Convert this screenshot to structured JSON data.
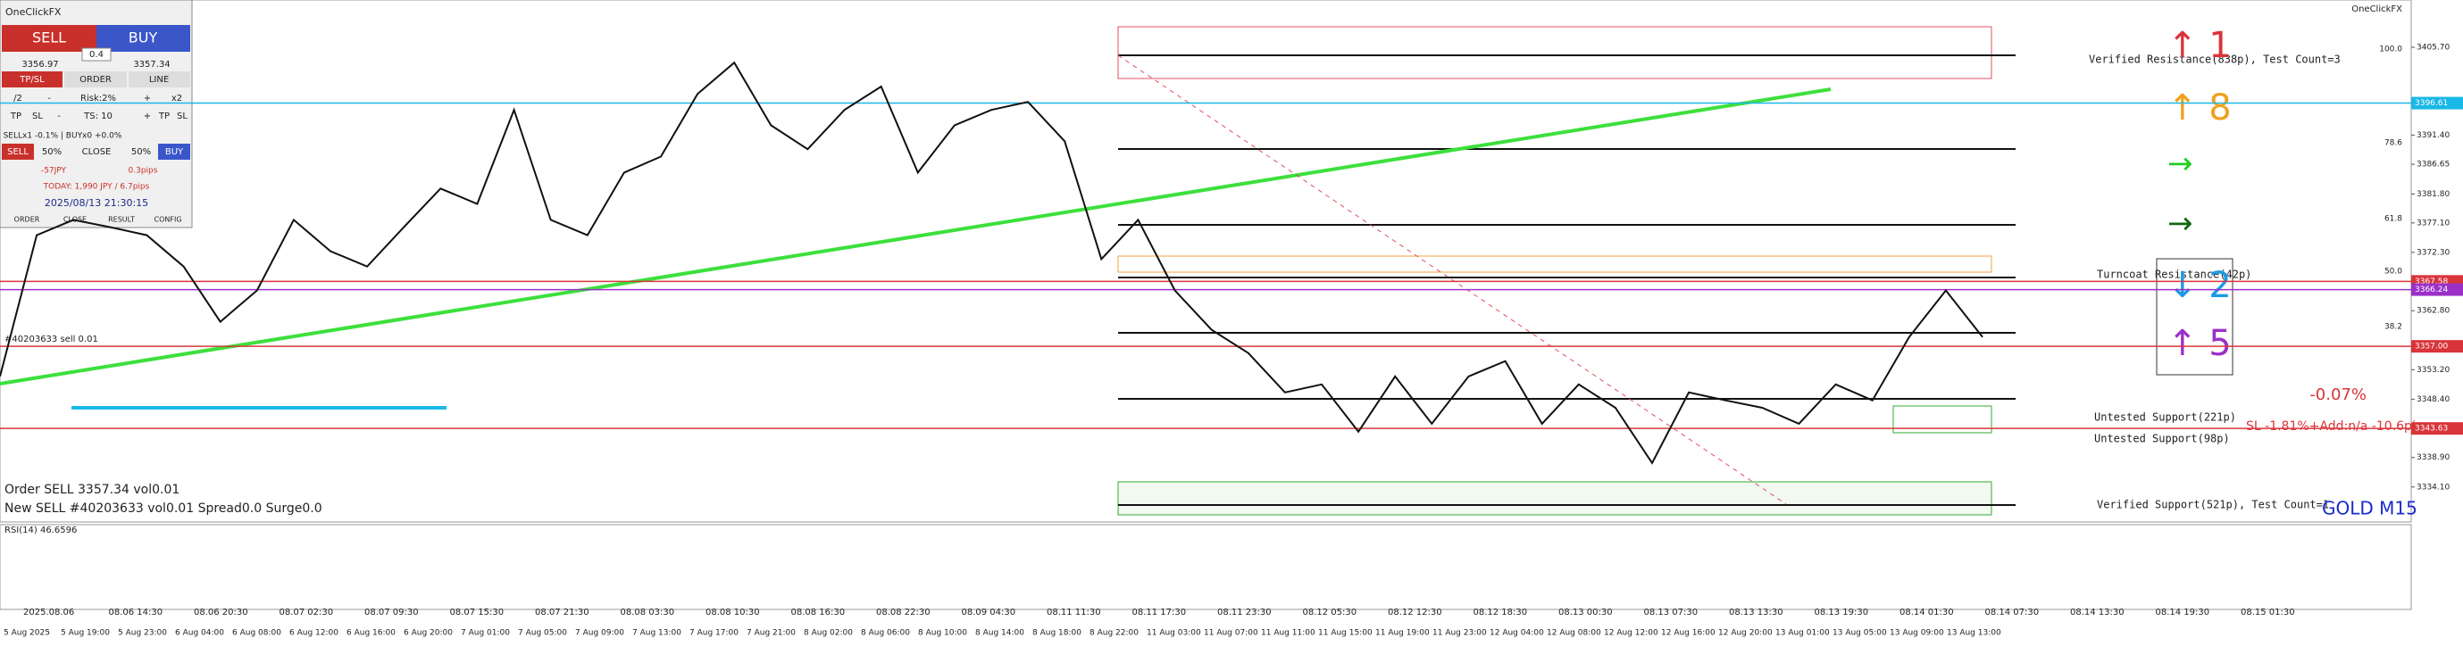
{
  "panel": {
    "title": "OneClickFX",
    "sell": "SELL",
    "buy": "BUY",
    "lot": "0.4",
    "bid": "3356.97",
    "ask": "3357.34",
    "tabs": [
      "TP/SL",
      "ORDER",
      "LINE"
    ],
    "row1": [
      "/2",
      "-",
      "Risk:2%",
      "+",
      "x2"
    ],
    "row2": [
      "TP",
      "SL",
      "-",
      "TS: 10",
      "+",
      "TP",
      "SL"
    ],
    "status": "SELLx1 -0.1% | BUYx0 +0.0%",
    "row3": [
      "SELL",
      "50%",
      "CLOSE",
      "50%",
      "BUY"
    ],
    "pl": "-57JPY",
    "pips": "0.3pips",
    "today": "TODAY: 1,990 JPY / 6.7pips",
    "clock": "2025/08/13 21:30:15",
    "footer": [
      "ORDER",
      "CLOSE",
      "RESULT",
      "CONFIG"
    ]
  },
  "chart_data": {
    "type": "line",
    "title": "GOLD M15",
    "brand": "OneClickFX",
    "price_name": "Close",
    "values": [
      3352.1,
      3375.1,
      3377.6,
      3376.4,
      3375.1,
      3370.0,
      3361.0,
      3366.1,
      3377.6,
      3372.5,
      3370.0,
      3376.4,
      3382.7,
      3380.2,
      3395.5,
      3377.6,
      3375.1,
      3385.3,
      3387.9,
      3398.1,
      3403.2,
      3393.0,
      3389.1,
      3395.5,
      3399.3,
      3385.3,
      3393.0,
      3395.5,
      3396.8,
      3390.4,
      3371.2,
      3377.6,
      3366.1,
      3359.7,
      3355.9,
      3349.5,
      3350.8,
      3343.1,
      3352.1,
      3344.4,
      3352.1,
      3354.6,
      3344.4,
      3350.8,
      3347.0,
      3338.0,
      3349.5,
      3348.2,
      3347.0,
      3344.4,
      3350.8,
      3348.2,
      3358.5,
      3366.1,
      3358.5
    ],
    "ylim": [
      3328.4,
      3413.4
    ],
    "yticks": [
      {
        "value": 3405.7,
        "label": "3405.70"
      },
      {
        "value": 3391.4,
        "label": "3391.40"
      },
      {
        "value": 3386.65,
        "label": "3386.65"
      },
      {
        "value": 3381.8,
        "label": "3381.80"
      },
      {
        "value": 3377.1,
        "label": "3377.10"
      },
      {
        "value": 3372.3,
        "label": "3372.30"
      },
      {
        "value": 3362.8,
        "label": "3362.80"
      },
      {
        "value": 3353.2,
        "label": "3353.20"
      },
      {
        "value": 3348.4,
        "label": "3348.40"
      },
      {
        "value": 3343.7,
        "label": "3343.70"
      },
      {
        "value": 3338.9,
        "label": "3338.90"
      },
      {
        "value": 3334.1,
        "label": "3334.10"
      }
    ],
    "price_marks": [
      {
        "value": 3396.61,
        "label": "3396.61",
        "color": "#1ab8e6"
      },
      {
        "value": 3367.58,
        "label": "3367.58",
        "color": "#d9343a"
      },
      {
        "value": 3366.24,
        "label": "3366.24",
        "color": "#9b30c8"
      },
      {
        "value": 3357.0,
        "label": "3357.00",
        "color": "#d9343a"
      },
      {
        "value": 3343.63,
        "label": "3343.63",
        "color": "#d9343a"
      }
    ],
    "fib_labels": [
      "100.0",
      "78.6",
      "61.8",
      "50.0",
      "38.2"
    ],
    "zones": [
      "Verified Resistance(838p), Test Count=3",
      "Turncoat Resistance(42p)",
      "Untested Support(221p)",
      "Untested Support(98p)",
      "Verified Support(521p), Test Count=1"
    ],
    "arrows": [
      "↑ 1",
      "↑ 8",
      "→",
      "→",
      "↓ 2",
      "↑ 5"
    ],
    "pct": "-0.07%",
    "sl": "SL -1.81%+Add:n/a -10.6pips",
    "orders": [
      "Order SELL 3357.34 vol0.01",
      "New SELL #40203633 vol0.01 Spread0.0 Surge0.0",
      "#40203633 sell 0.01"
    ],
    "rsi_label": "RSI(14) 46.6596",
    "time_top": [
      "2025.08.06",
      "08.06 14:30",
      "08.06 20:30",
      "08.07 02:30",
      "08.07 09:30",
      "08.07 15:30",
      "08.07 21:30",
      "08.08 03:30",
      "08.08 10:30",
      "08.08 16:30",
      "08.08 22:30",
      "08.09 04:30",
      "08.11 11:30",
      "08.11 17:30",
      "08.11 23:30",
      "08.12 05:30",
      "08.12 12:30",
      "08.12 18:30",
      "08.13 00:30",
      "08.13 07:30",
      "08.13 13:30",
      "08.13 19:30",
      "08.14 01:30",
      "08.14 07:30",
      "08.14 13:30",
      "08.14 19:30",
      "08.15 01:30"
    ],
    "time_bottom": [
      "5 Aug 2025",
      "5 Aug 19:00",
      "5 Aug 23:00",
      "6 Aug 04:00",
      "6 Aug 08:00",
      "6 Aug 12:00",
      "6 Aug 16:00",
      "6 Aug 20:00",
      "7 Aug 01:00",
      "7 Aug 05:00",
      "7 Aug 09:00",
      "7 Aug 13:00",
      "7 Aug 17:00",
      "7 Aug 21:00",
      "8 Aug 02:00",
      "8 Aug 06:00",
      "8 Aug 10:00",
      "8 Aug 14:00",
      "8 Aug 18:00",
      "8 Aug 22:00",
      "11 Aug 03:00",
      "11 Aug 07:00",
      "11 Aug 11:00",
      "11 Aug 15:00",
      "11 Aug 19:00",
      "11 Aug 23:00",
      "12 Aug 04:00",
      "12 Aug 08:00",
      "12 Aug 12:00",
      "12 Aug 16:00",
      "12 Aug 20:00",
      "13 Aug 01:00",
      "13 Aug 05:00",
      "13 Aug 09:00",
      "13 Aug 13:00"
    ]
  }
}
